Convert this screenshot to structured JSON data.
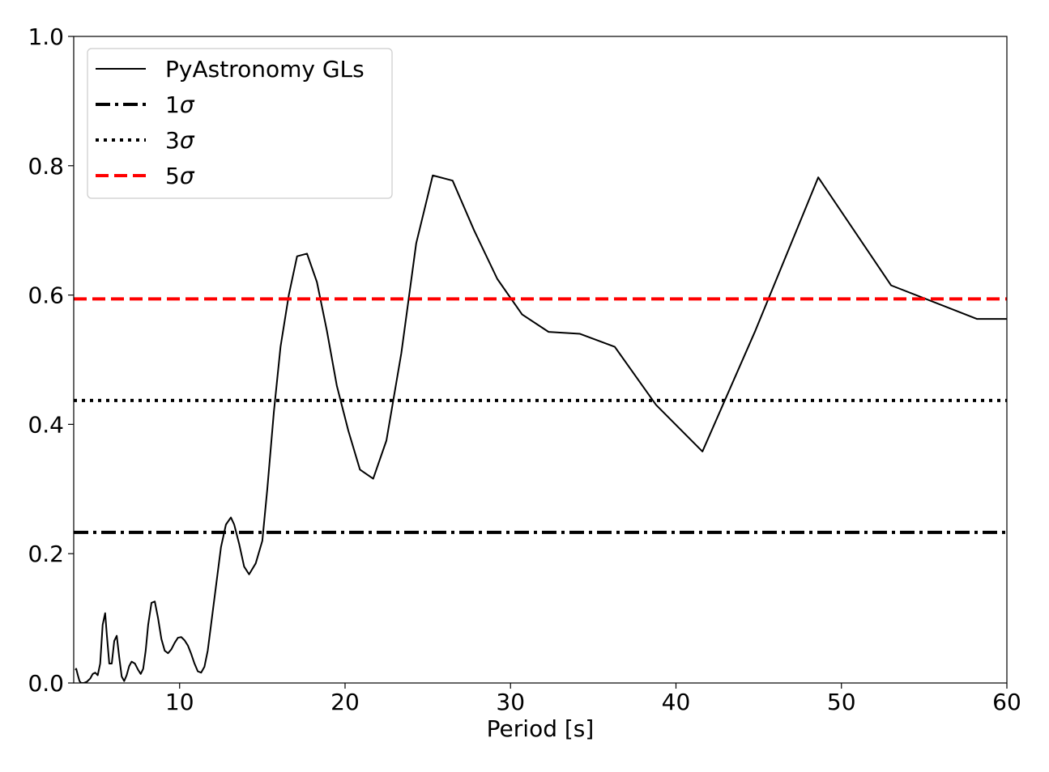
{
  "chart_data": {
    "type": "line",
    "title": "",
    "xlabel": "Period [s]",
    "ylabel": "",
    "xlim": [
      3.6,
      60
    ],
    "ylim": [
      0,
      1.0
    ],
    "x_ticks": [
      10,
      20,
      30,
      40,
      50,
      60
    ],
    "x_tick_labels": [
      "10",
      "20",
      "30",
      "40",
      "50",
      "60"
    ],
    "y_ticks": [
      0.0,
      0.2,
      0.4,
      0.6,
      0.8,
      1.0
    ],
    "y_tick_labels": [
      "0.0",
      "0.2",
      "0.4",
      "0.6",
      "0.8",
      "1.0"
    ],
    "grid": false,
    "legend_position": "top-left",
    "series": [
      {
        "name": "PyAstronomy GLs",
        "kind": "line",
        "color": "#000000",
        "dash": "solid",
        "x": [
          3.7,
          3.75,
          3.85,
          3.95,
          4.05,
          4.2,
          4.4,
          4.6,
          4.75,
          4.9,
          5.05,
          5.2,
          5.35,
          5.5,
          5.6,
          5.75,
          5.9,
          6.05,
          6.2,
          6.35,
          6.5,
          6.65,
          6.8,
          6.95,
          7.1,
          7.3,
          7.5,
          7.65,
          7.8,
          7.95,
          8.1,
          8.3,
          8.5,
          8.7,
          8.9,
          9.1,
          9.3,
          9.5,
          9.7,
          9.9,
          10.1,
          10.3,
          10.5,
          10.7,
          10.9,
          11.1,
          11.3,
          11.5,
          11.7,
          11.9,
          12.2,
          12.5,
          12.8,
          13.1,
          13.3,
          13.6,
          13.9,
          14.2,
          14.6,
          15.0,
          15.3,
          15.7,
          16.1,
          16.6,
          17.1,
          17.7,
          18.3,
          18.9,
          19.5,
          20.2,
          20.9,
          21.7,
          22.5,
          23.4,
          24.3,
          25.3,
          26.5,
          27.8,
          29.2,
          30.7,
          32.3,
          34.2,
          36.3,
          38.8,
          41.6,
          44.8,
          48.6,
          53.0,
          58.2,
          60.0
        ],
        "y": [
          0.02,
          0.022,
          0.012,
          0.003,
          0.0,
          0.0,
          0.002,
          0.007,
          0.014,
          0.016,
          0.012,
          0.03,
          0.09,
          0.108,
          0.075,
          0.03,
          0.03,
          0.065,
          0.073,
          0.04,
          0.01,
          0.003,
          0.012,
          0.026,
          0.033,
          0.03,
          0.02,
          0.014,
          0.022,
          0.05,
          0.09,
          0.124,
          0.126,
          0.1,
          0.068,
          0.05,
          0.046,
          0.052,
          0.062,
          0.07,
          0.071,
          0.066,
          0.058,
          0.045,
          0.03,
          0.018,
          0.016,
          0.025,
          0.05,
          0.09,
          0.15,
          0.21,
          0.245,
          0.256,
          0.245,
          0.215,
          0.18,
          0.168,
          0.185,
          0.22,
          0.3,
          0.42,
          0.52,
          0.6,
          0.66,
          0.664,
          0.62,
          0.545,
          0.46,
          0.39,
          0.33,
          0.316,
          0.375,
          0.51,
          0.68,
          0.785,
          0.777,
          0.7,
          0.625,
          0.57,
          0.543,
          0.54,
          0.52,
          0.43,
          0.358,
          0.545,
          0.782,
          0.615,
          0.563,
          0.563
        ]
      },
      {
        "name": "1σ",
        "kind": "hline",
        "value": 0.233,
        "color": "#000000",
        "dash": "dashdot"
      },
      {
        "name": "3σ",
        "kind": "hline",
        "value": 0.437,
        "color": "#000000",
        "dash": "dotted"
      },
      {
        "name": "5σ",
        "kind": "hline",
        "value": 0.594,
        "color": "#ff0000",
        "dash": "dashed"
      }
    ],
    "legend": [
      {
        "label_main": "PyAstronomy GLs",
        "label_italic": ""
      },
      {
        "label_main": "1",
        "label_italic": "σ"
      },
      {
        "label_main": "3",
        "label_italic": "σ"
      },
      {
        "label_main": "5",
        "label_italic": "σ"
      }
    ]
  }
}
